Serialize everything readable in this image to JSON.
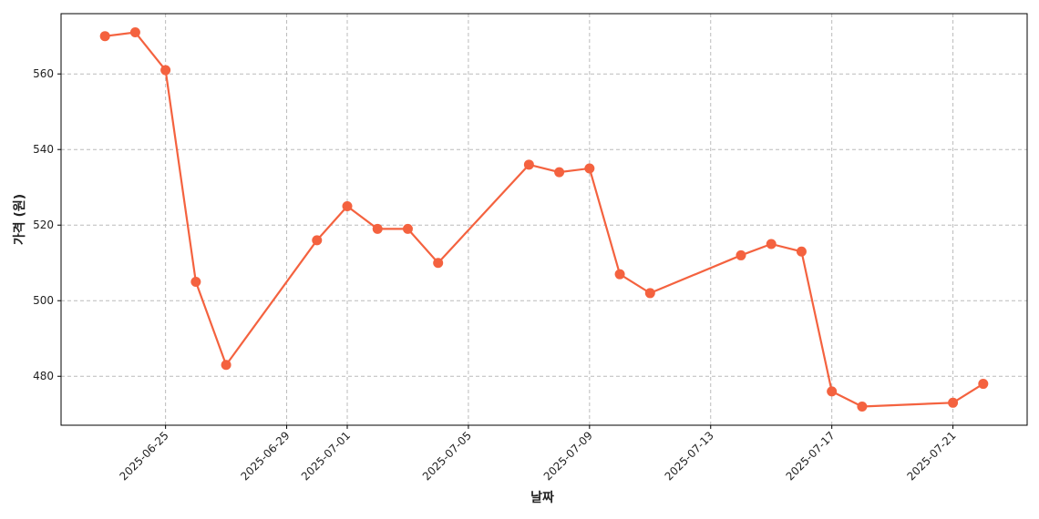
{
  "chart_data": {
    "type": "line",
    "xlabel": "날짜",
    "ylabel": "가격 (원)",
    "x": [
      "2025-06-23",
      "2025-06-24",
      "2025-06-25",
      "2025-06-26",
      "2025-06-27",
      "2025-06-30",
      "2025-07-01",
      "2025-07-02",
      "2025-07-03",
      "2025-07-04",
      "2025-07-07",
      "2025-07-08",
      "2025-07-09",
      "2025-07-10",
      "2025-07-11",
      "2025-07-14",
      "2025-07-15",
      "2025-07-16",
      "2025-07-17",
      "2025-07-18",
      "2025-07-21",
      "2025-07-22"
    ],
    "values": [
      570,
      571,
      561,
      505,
      483,
      516,
      525,
      519,
      519,
      510,
      536,
      534,
      535,
      507,
      502,
      512,
      515,
      513,
      476,
      472,
      473,
      478
    ],
    "color": "#f4623f",
    "xlim": [
      "2025-06-21T13:12:00",
      "2025-07-23T10:48:00"
    ],
    "xticks": [
      "2025-06-25",
      "2025-06-29",
      "2025-07-01",
      "2025-07-05",
      "2025-07-09",
      "2025-07-13",
      "2025-07-17",
      "2025-07-21"
    ],
    "ylim": [
      467.05,
      575.95
    ],
    "yticks": [
      480,
      500,
      520,
      540,
      560
    ],
    "grid": true
  }
}
